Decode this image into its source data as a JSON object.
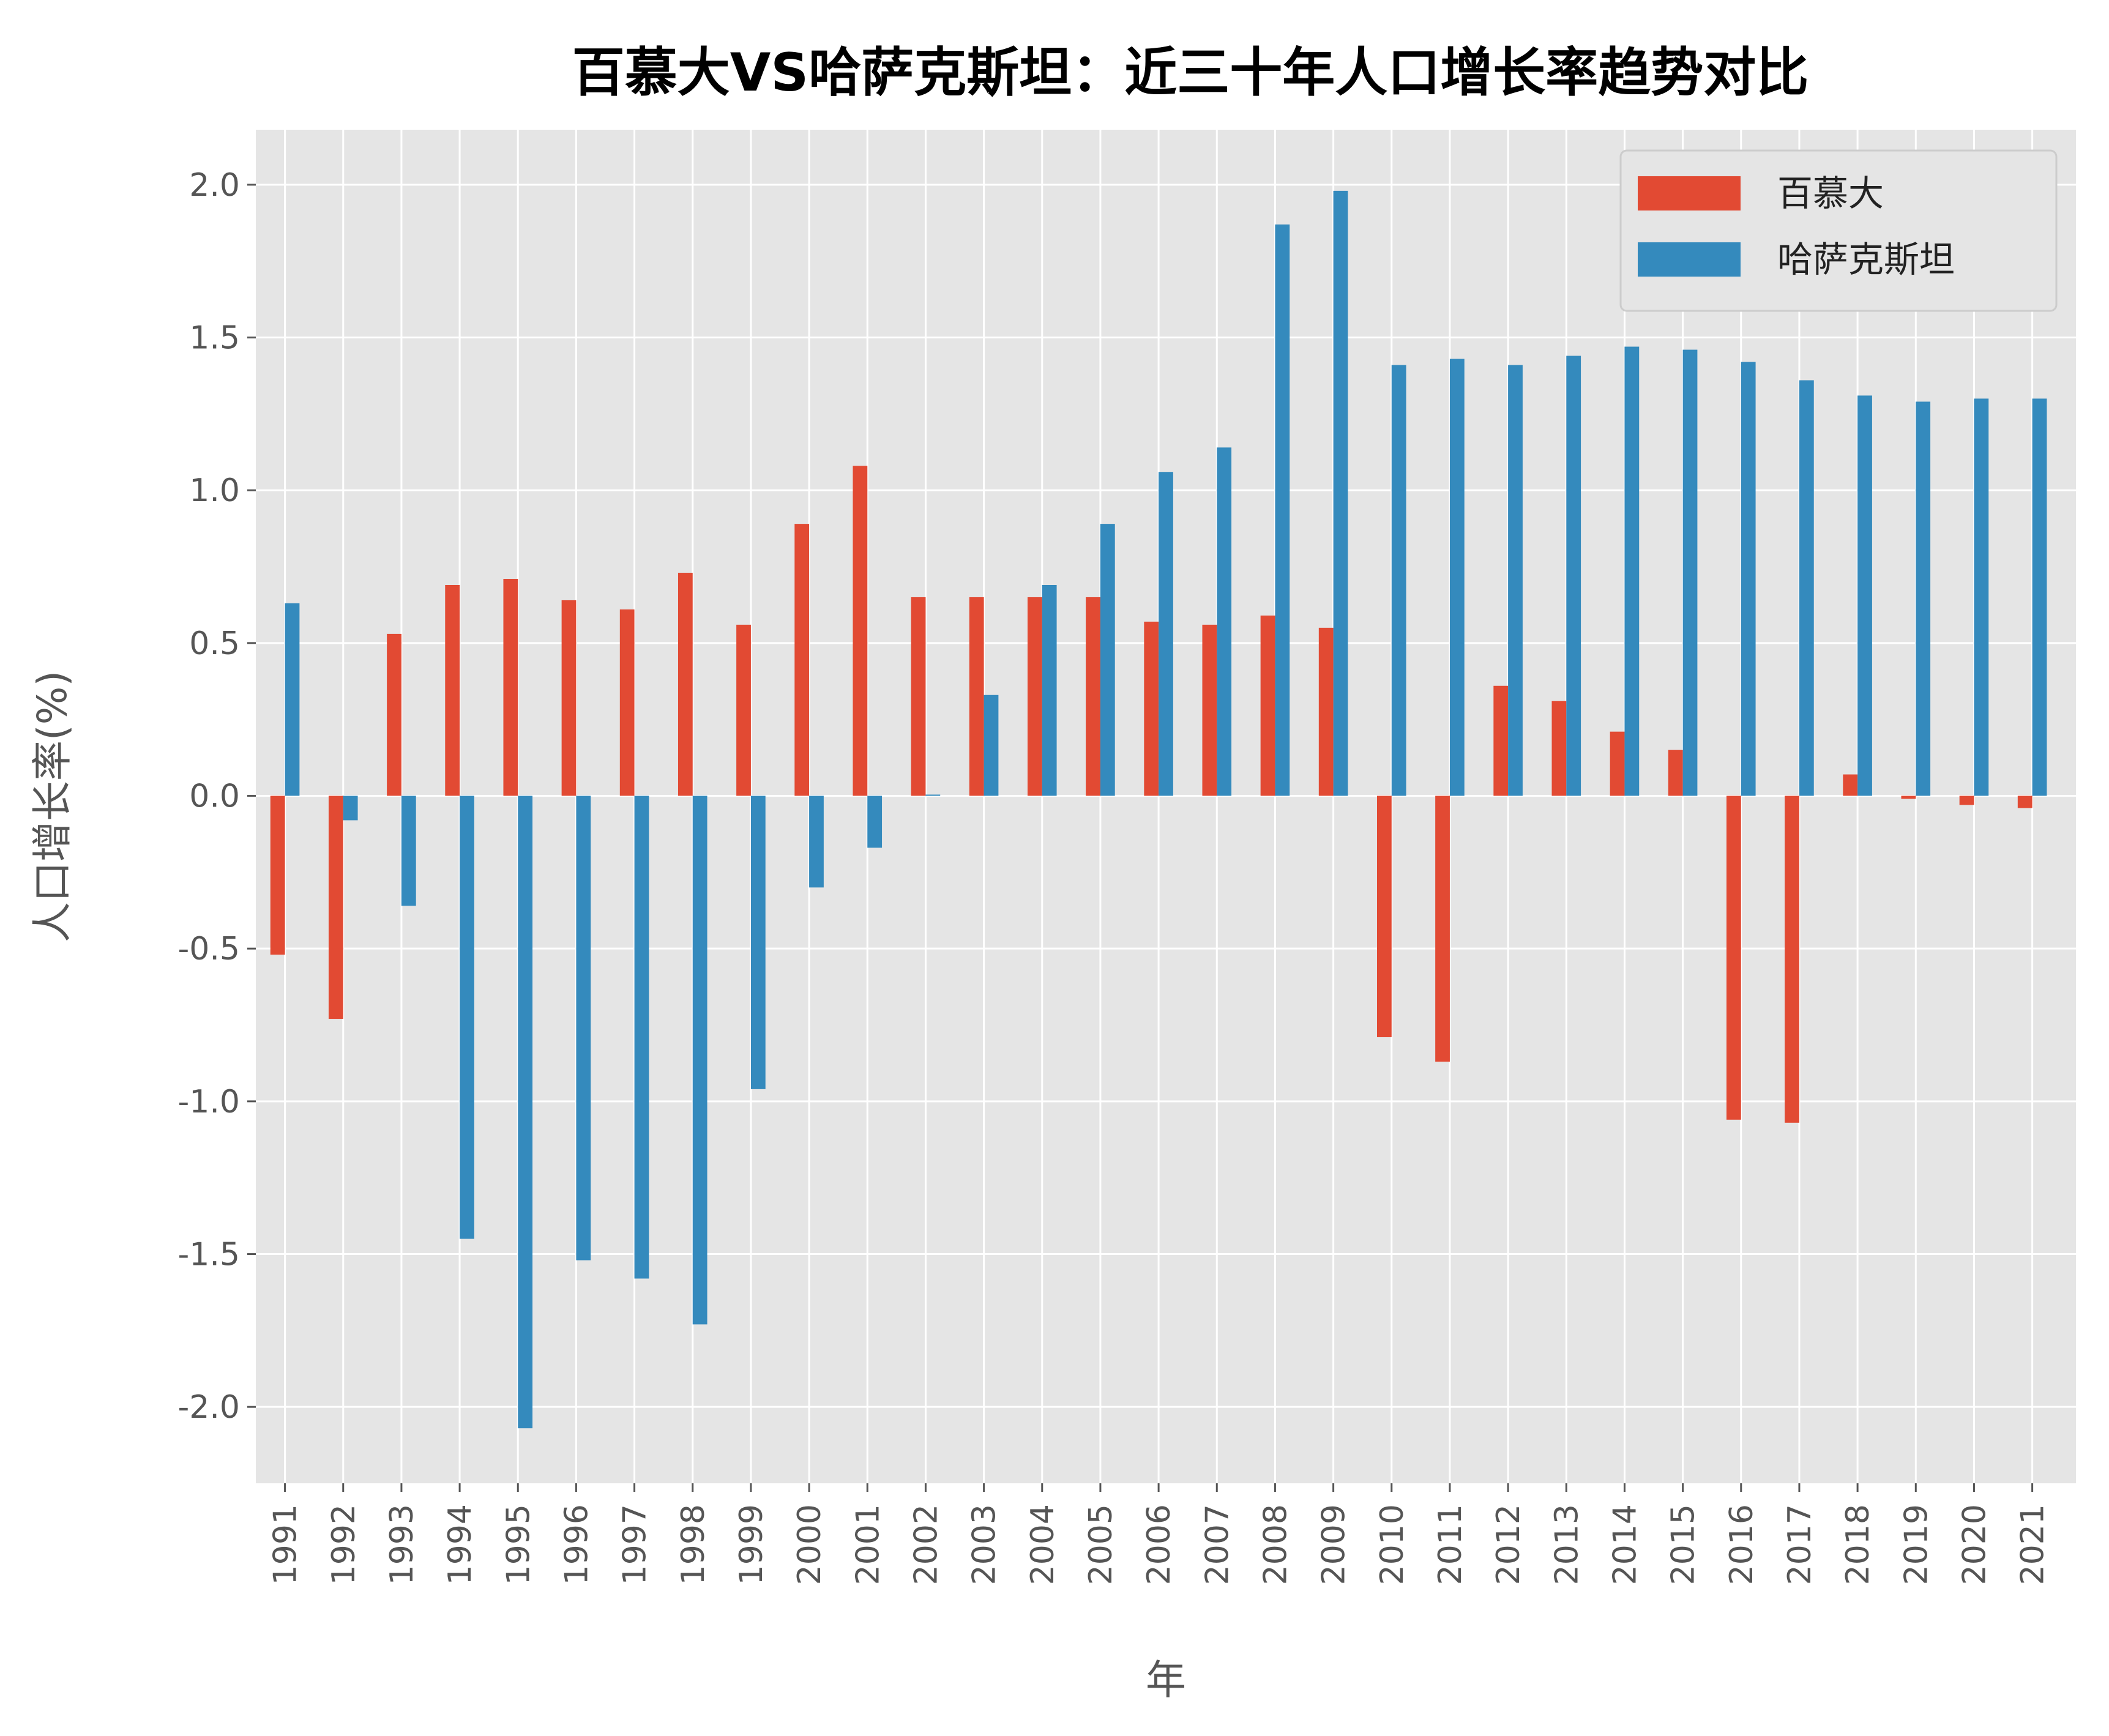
{
  "chart_data": {
    "type": "bar",
    "title": "百慕大VS哈萨克斯坦：近三十年人口增长率趋势对比",
    "xlabel": "年",
    "ylabel": "人口增长率(%)",
    "ylim": [
      -2.25,
      2.18
    ],
    "yticks": [
      -2.0,
      -1.5,
      -1.0,
      -0.5,
      0.0,
      0.5,
      1.0,
      1.5,
      2.0
    ],
    "ytick_labels": [
      "-2.0",
      "-1.5",
      "-1.0",
      "-0.5",
      "0.0",
      "0.5",
      "1.0",
      "1.5",
      "2.0"
    ],
    "grid": true,
    "legend_position": "top-right",
    "categories": [
      "1991",
      "1992",
      "1993",
      "1994",
      "1995",
      "1996",
      "1997",
      "1998",
      "1999",
      "2000",
      "2001",
      "2002",
      "2003",
      "2004",
      "2005",
      "2006",
      "2007",
      "2008",
      "2009",
      "2010",
      "2011",
      "2012",
      "2013",
      "2014",
      "2015",
      "2016",
      "2017",
      "2018",
      "2019",
      "2020",
      "2021"
    ],
    "series": [
      {
        "name": "百慕大",
        "color": "#e24a33",
        "values": [
          -0.52,
          -0.73,
          0.53,
          0.69,
          0.71,
          0.64,
          0.61,
          0.73,
          0.56,
          0.89,
          1.08,
          0.65,
          0.65,
          0.65,
          0.65,
          0.57,
          0.56,
          0.59,
          0.55,
          -0.79,
          -0.87,
          0.36,
          0.31,
          0.21,
          0.15,
          -1.06,
          -1.07,
          0.07,
          -0.01,
          -0.03,
          -0.04
        ]
      },
      {
        "name": "哈萨克斯坦",
        "color": "#348abd",
        "values": [
          0.63,
          -0.08,
          -0.36,
          -1.45,
          -2.07,
          -1.52,
          -1.58,
          -1.73,
          -0.96,
          -0.3,
          -0.17,
          0.004,
          0.33,
          0.69,
          0.89,
          1.06,
          1.14,
          1.87,
          1.98,
          1.41,
          1.43,
          1.41,
          1.44,
          1.47,
          1.46,
          1.42,
          1.36,
          1.31,
          1.29,
          1.3,
          1.3
        ]
      }
    ]
  }
}
